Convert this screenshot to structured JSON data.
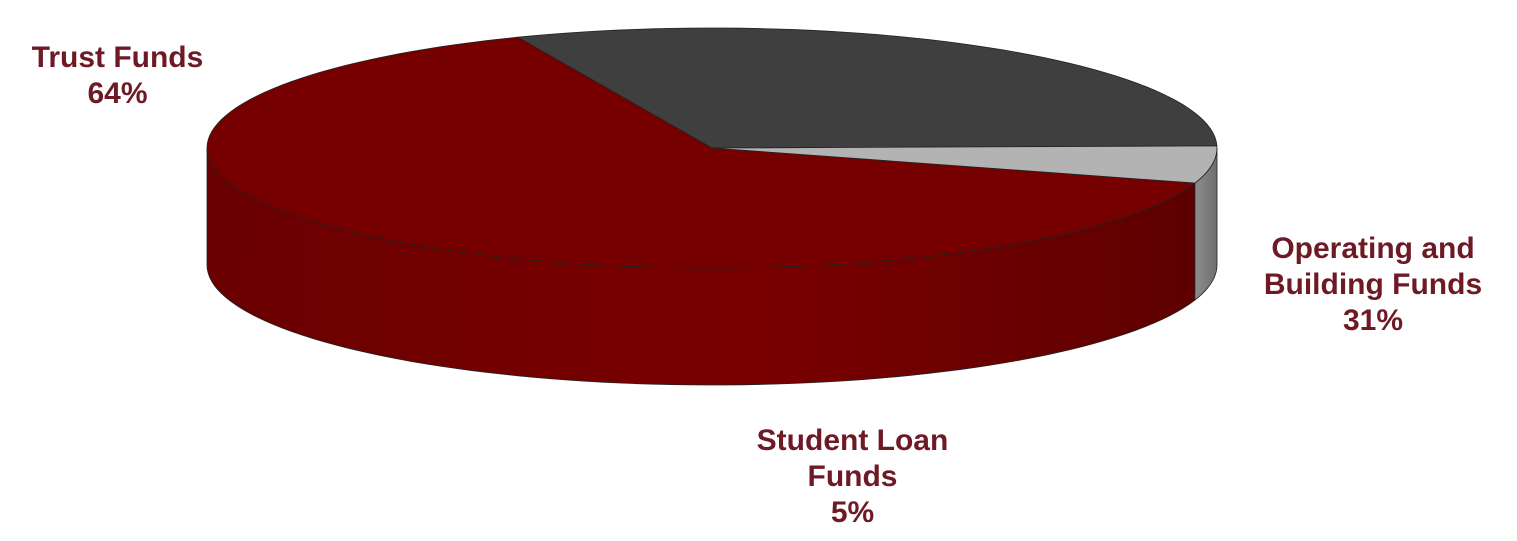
{
  "chart_data": {
    "type": "pie",
    "title": "",
    "slices": [
      {
        "label_lines": [
          "Trust Funds"
        ],
        "pct_text": "64%",
        "value": 64,
        "color": "#760000"
      },
      {
        "label_lines": [
          "Operating and",
          "Building Funds"
        ],
        "pct_text": "31%",
        "value": 31,
        "color": "#3f3f3f"
      },
      {
        "label_lines": [
          "Student Loan",
          "Funds"
        ],
        "pct_text": "5%",
        "value": 5,
        "color": "#b3b3b3"
      }
    ],
    "legend": "none",
    "label_color": "#6e1a25",
    "style": "3d"
  }
}
